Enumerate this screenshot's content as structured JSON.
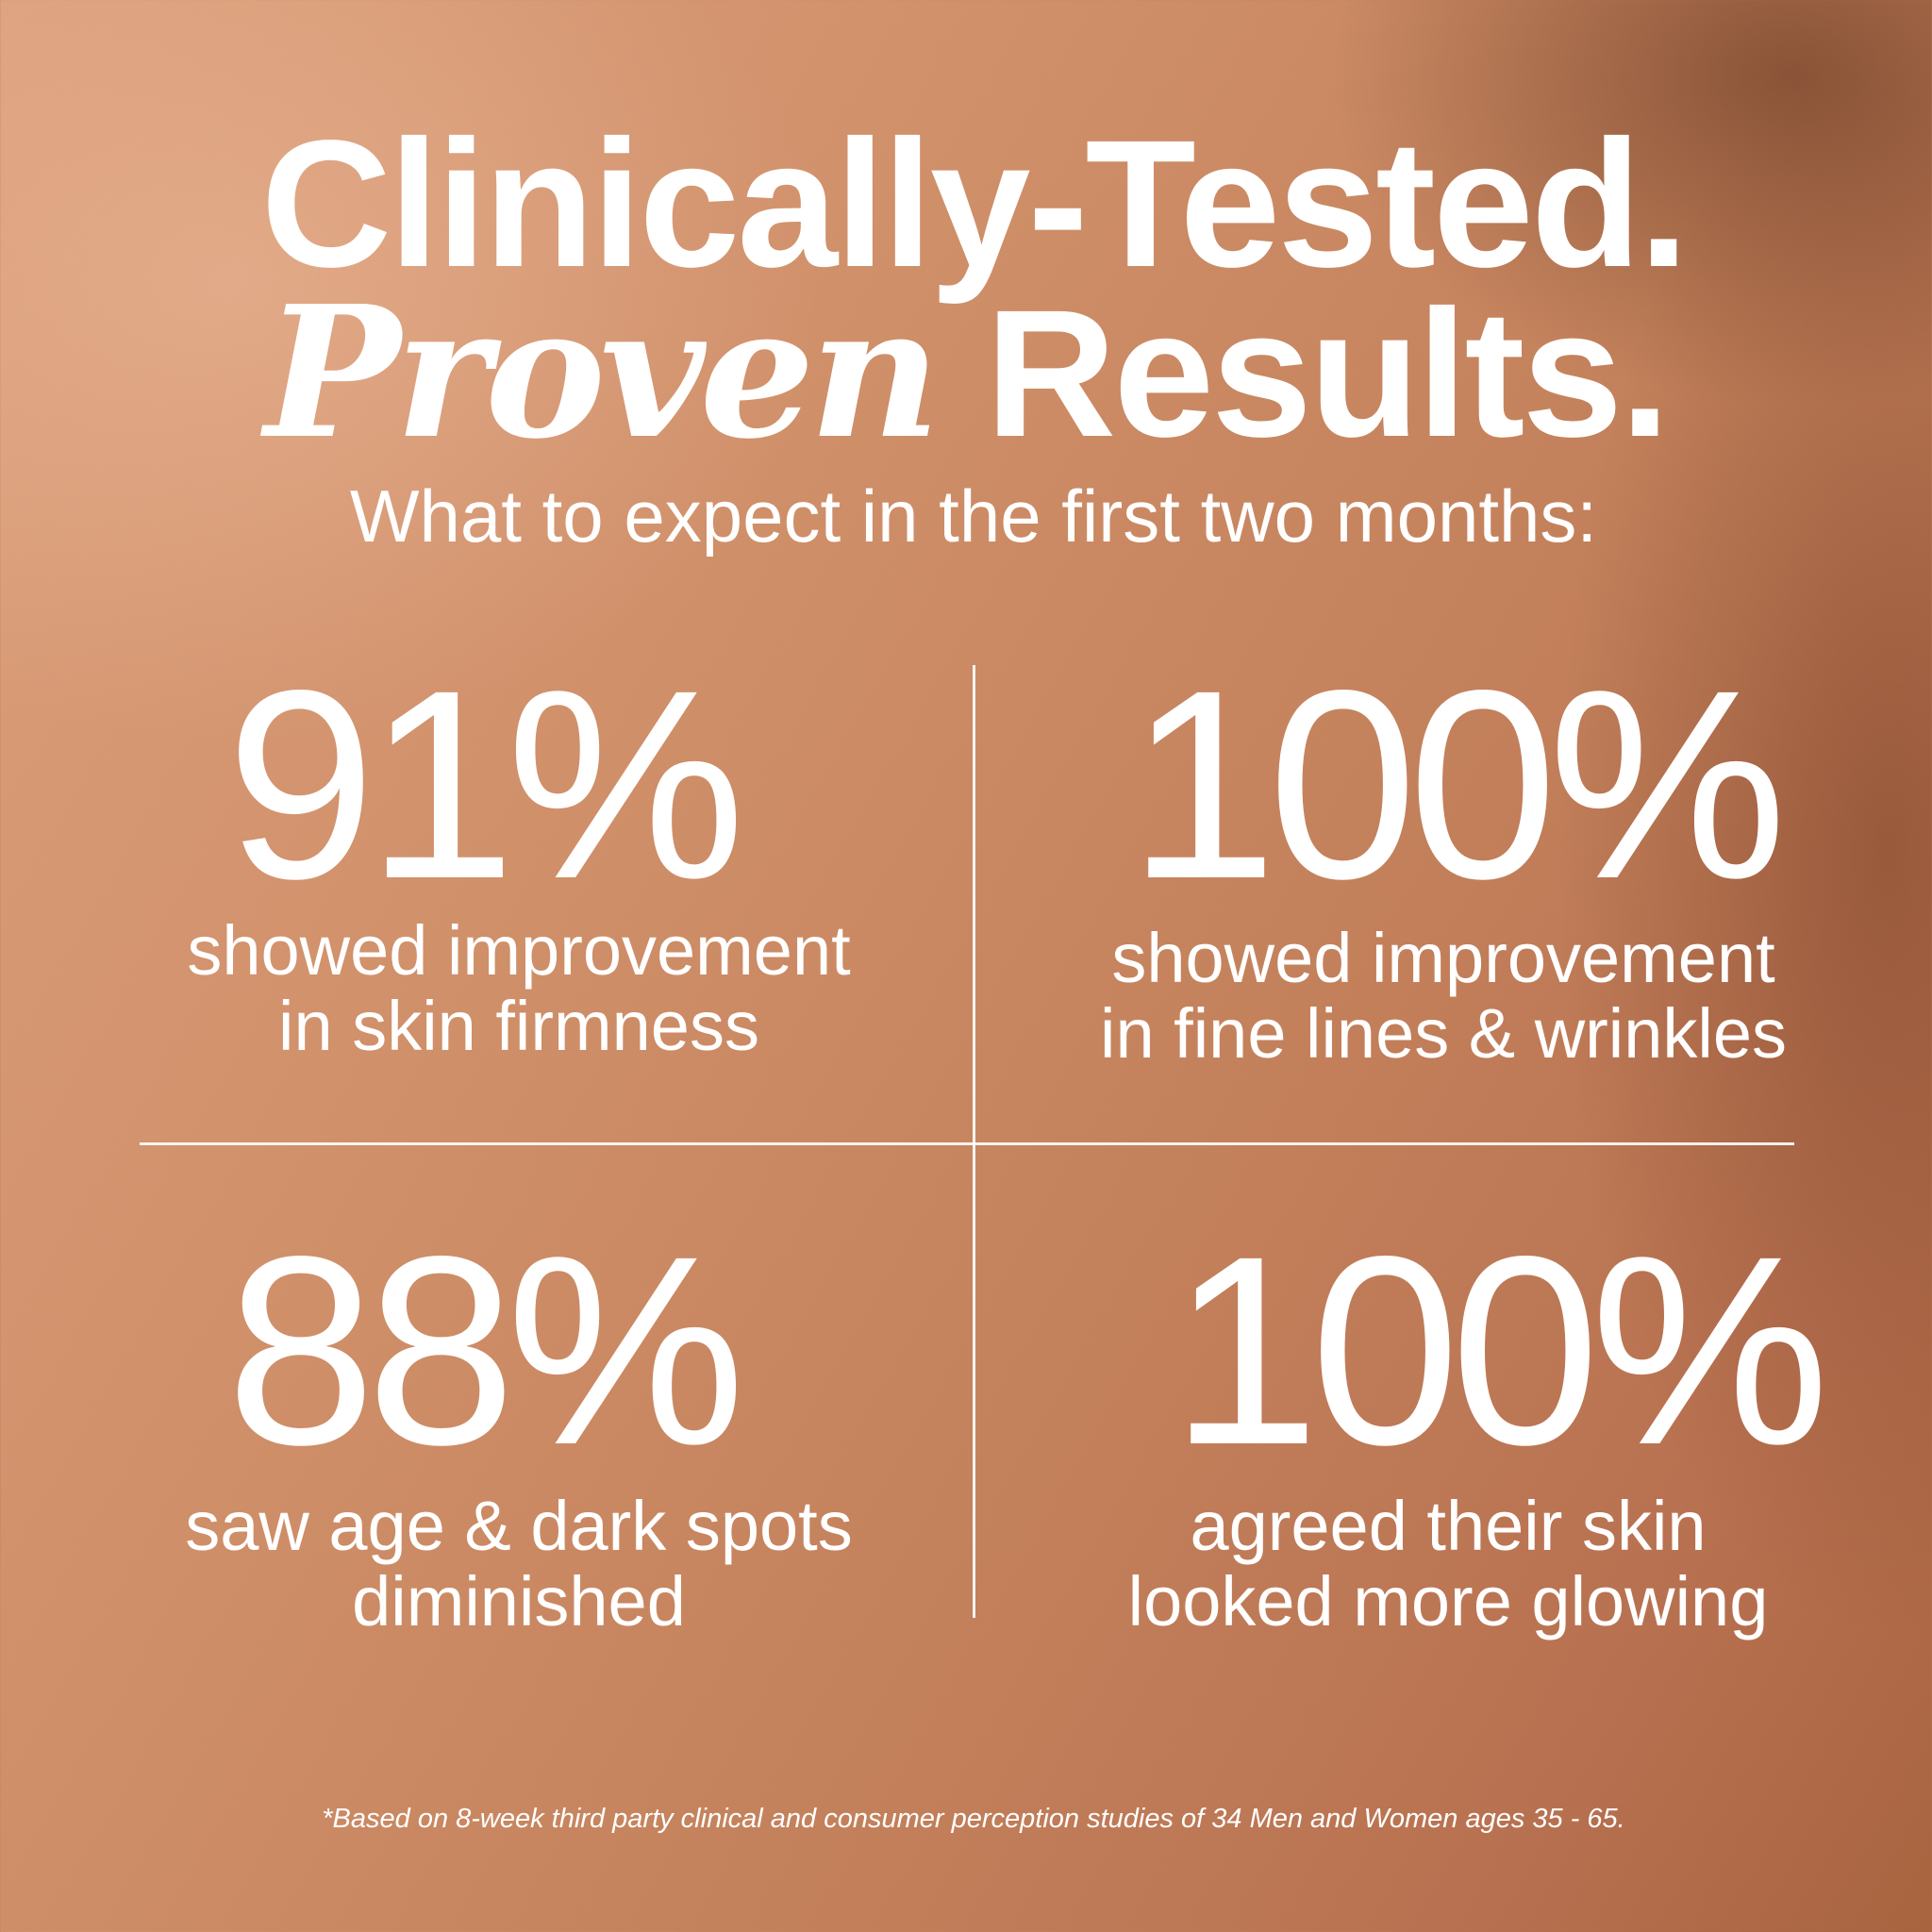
{
  "headline": {
    "line1": "Clinically-Tested.",
    "line2_italic": "Proven",
    "line2_rest": "Results."
  },
  "subtitle": "What to expect in the first two months:",
  "stats": [
    {
      "value": "91%",
      "line1": "showed improvement",
      "line2": "in skin firmness"
    },
    {
      "value": "100%",
      "line1": "showed improvement",
      "line2": "in fine lines & wrinkles"
    },
    {
      "value": "88%",
      "line1": "saw age & dark spots",
      "line2": "diminished"
    },
    {
      "value": "100%",
      "line1": "agreed their skin",
      "line2": "looked more glowing"
    }
  ],
  "footnote": "*Based on 8-week third party clinical and consumer perception studies of 34 Men and Women ages 35 - 65.",
  "colors": {
    "text": "#ffffff",
    "background": "#c98a64"
  }
}
